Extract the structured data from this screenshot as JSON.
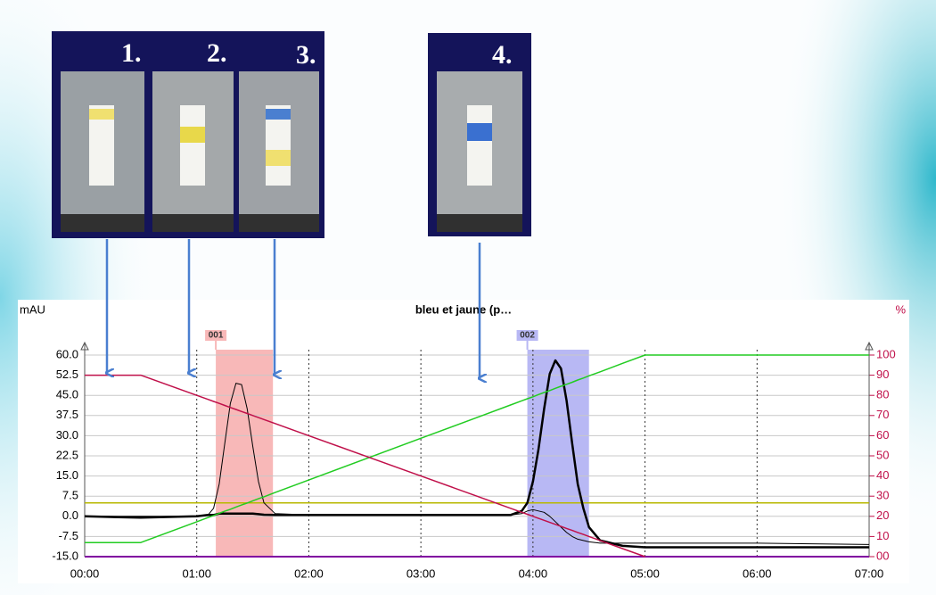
{
  "panels": [
    {
      "labels": [
        "1.",
        "2.",
        "3."
      ]
    },
    {
      "labels": [
        "4."
      ]
    }
  ],
  "chart_data": {
    "type": "line",
    "title": "bleu et jaune (p…",
    "y_label": "mAU",
    "y2_label": "%",
    "x": [
      0,
      0.5,
      1.0,
      1.1,
      1.15,
      1.2,
      1.25,
      1.3,
      1.35,
      1.4,
      1.45,
      1.5,
      1.55,
      1.6,
      1.7,
      2.0,
      3.0,
      3.5,
      3.8,
      3.9,
      3.95,
      4.0,
      4.05,
      4.1,
      4.15,
      4.2,
      4.25,
      4.3,
      4.35,
      4.4,
      4.45,
      4.5,
      4.6,
      4.8,
      5.0,
      6.0,
      7.0
    ],
    "xlim": [
      0,
      7
    ],
    "xticks": [
      {
        "value": 0,
        "label": "00:00"
      },
      {
        "value": 1,
        "label": "01:00"
      },
      {
        "value": 2,
        "label": "02:00"
      },
      {
        "value": 3,
        "label": "03:00"
      },
      {
        "value": 4,
        "label": "04:00"
      },
      {
        "value": 5,
        "label": "05:00"
      },
      {
        "value": 6,
        "label": "06:00"
      },
      {
        "value": 7,
        "label": "07:00"
      }
    ],
    "ylim": [
      -15,
      60
    ],
    "yticks": [
      {
        "value": 60,
        "label": "60.0"
      },
      52.5,
      {
        "value": 45,
        "label": "45.0"
      },
      37.5,
      {
        "value": 30,
        "label": "30.0"
      },
      22.5,
      {
        "value": 15,
        "label": "15.0"
      },
      7.5,
      {
        "value": 0,
        "label": "0.0"
      },
      -7.5,
      {
        "value": -15,
        "label": "-15.0"
      }
    ],
    "y2lim": [
      0,
      100
    ],
    "y2ticks": [
      100,
      90,
      80,
      70,
      60,
      50,
      40,
      30,
      20,
      10,
      {
        "value": 0,
        "label": "00"
      }
    ],
    "series": [
      {
        "color": "#000000",
        "width": 1,
        "values": [
          0,
          0,
          0,
          0.5,
          3,
          12,
          27,
          42,
          49.5,
          49,
          40,
          26,
          13,
          5,
          1,
          0.5,
          0.5,
          0.5,
          0.5,
          1,
          2,
          2.5,
          2,
          1.5,
          0,
          -2,
          -4,
          -6,
          -7.5,
          -8.5,
          -9,
          -9.5,
          -10,
          -10,
          -10,
          -10,
          -10.5
        ]
      },
      {
        "color": "#000000",
        "width": 2.5,
        "values": [
          0,
          -0.5,
          0,
          0.5,
          0.5,
          1,
          1,
          1,
          1,
          1,
          1,
          1,
          0.8,
          0.6,
          0.5,
          0.5,
          0.5,
          0.5,
          0.5,
          2,
          5,
          13,
          25,
          40,
          53,
          58,
          55,
          43,
          27,
          12,
          3,
          -4,
          -9,
          -11,
          -11.5,
          -11.5,
          -11.5
        ]
      },
      {
        "color": "#22cc22",
        "width": 1.5,
        "axis": "y2",
        "values": [
          7,
          7,
          17.3,
          19.4,
          20.4,
          21.5,
          22.5,
          23.5,
          24.6,
          25.6,
          26.6,
          27.7,
          28.7,
          29.7,
          31.8,
          38,
          58.7,
          69,
          75.2,
          77.3,
          78.3,
          79.3,
          80.4,
          81.4,
          82.4,
          83.5,
          84.5,
          85.5,
          86.5,
          87.6,
          88.6,
          89.7,
          91.7,
          95.9,
          100,
          100,
          100
        ]
      },
      {
        "color": "#c0104a",
        "width": 1.5,
        "axis": "y2",
        "values": [
          90,
          90,
          80,
          78,
          77,
          76,
          75,
          74,
          73,
          72,
          71,
          70,
          69,
          68,
          66,
          60,
          40,
          30,
          24,
          22,
          21,
          20,
          19,
          18,
          17,
          16,
          15,
          14,
          13,
          12,
          11,
          10,
          8,
          4,
          0,
          null,
          null
        ]
      }
    ],
    "hlines": [
      {
        "value": 5,
        "color": "#b8b800"
      }
    ],
    "fractions": [
      {
        "label": "001",
        "x": [
          1.17,
          1.68
        ],
        "color": "#f8b8b8"
      },
      {
        "label": "002",
        "x": [
          3.95,
          4.5
        ],
        "color": "#b8b8f4"
      }
    ],
    "grid": true
  }
}
